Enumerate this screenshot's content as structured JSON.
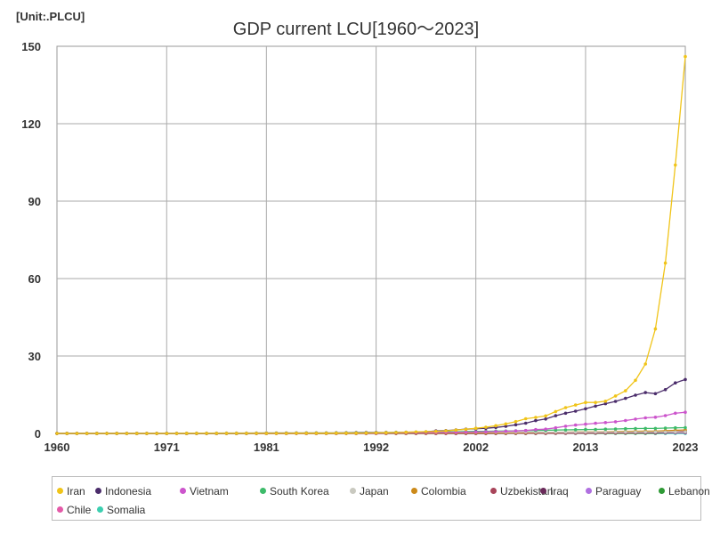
{
  "chart_data": {
    "type": "line",
    "title": "GDP current LCU[1960～2023]",
    "unit_label": "[Unit:.PLCU]",
    "xlabel": "",
    "ylabel": "",
    "x_ticks": [
      1960,
      1971,
      1981,
      1992,
      2002,
      2013,
      2023
    ],
    "xlim": [
      1960,
      2023
    ],
    "y_ticks": [
      0,
      30,
      60,
      90,
      120,
      150
    ],
    "ylim": [
      0,
      150
    ],
    "grid": true,
    "legend_position": "bottom",
    "series": [
      {
        "name": "Iran",
        "color": "#f0c419",
        "x_start": 1960,
        "values": [
          0.01,
          0.01,
          0.01,
          0.01,
          0.01,
          0.01,
          0.01,
          0.01,
          0.01,
          0.01,
          0.01,
          0.01,
          0.01,
          0.02,
          0.02,
          0.02,
          0.03,
          0.03,
          0.03,
          0.03,
          0.04,
          0.04,
          0.05,
          0.05,
          0.06,
          0.06,
          0.07,
          0.08,
          0.09,
          0.1,
          0.12,
          0.15,
          0.2,
          0.26,
          0.33,
          0.44,
          0.59,
          0.7,
          0.8,
          1.0,
          1.3,
          1.6,
          2.0,
          2.4,
          3.0,
          3.7,
          4.6,
          5.7,
          6.2,
          6.8,
          8.5,
          10.0,
          11.0,
          12.0,
          12.0,
          12.5,
          14.5,
          16.5,
          20.6,
          26.9,
          40.5,
          66.0,
          104.0,
          146.0
        ]
      },
      {
        "name": "Indonesia",
        "color": "#4b2d6b",
        "x_start": 1960,
        "values": [
          0,
          0,
          0,
          0,
          0,
          0,
          0,
          0,
          0,
          0,
          0,
          0,
          0,
          0,
          0,
          0,
          0,
          0,
          0,
          0,
          0.05,
          0.06,
          0.07,
          0.08,
          0.09,
          0.1,
          0.1,
          0.12,
          0.14,
          0.16,
          0.2,
          0.23,
          0.26,
          0.3,
          0.35,
          0.45,
          0.53,
          0.62,
          0.95,
          1.1,
          1.39,
          1.65,
          1.82,
          2.01,
          2.3,
          2.77,
          3.34,
          3.95,
          4.95,
          5.6,
          6.86,
          7.83,
          8.62,
          9.55,
          10.57,
          11.53,
          12.4,
          13.59,
          14.84,
          15.83,
          15.43,
          16.98,
          19.59,
          20.89
        ]
      },
      {
        "name": "Vietnam",
        "color": "#cc55cc",
        "x_start": 1960,
        "values": [
          0,
          0,
          0,
          0,
          0,
          0,
          0,
          0,
          0,
          0,
          0,
          0,
          0,
          0,
          0,
          0,
          0,
          0,
          0,
          0,
          0,
          0,
          0,
          0,
          0,
          0,
          0.02,
          0.03,
          0.05,
          0.06,
          0.07,
          0.09,
          0.12,
          0.14,
          0.18,
          0.22,
          0.27,
          0.31,
          0.36,
          0.4,
          0.44,
          0.48,
          0.54,
          0.61,
          0.72,
          0.84,
          0.97,
          1.14,
          1.48,
          1.66,
          2.16,
          2.78,
          3.25,
          3.58,
          3.94,
          4.19,
          4.5,
          5.01,
          5.54,
          6.04,
          6.29,
          6.89,
          7.83,
          8.22
        ]
      },
      {
        "name": "South Korea",
        "color": "#3dbb6a",
        "x_start": 1960,
        "values": [
          0,
          0,
          0,
          0,
          0,
          0,
          0,
          0,
          0,
          0,
          0,
          0,
          0,
          0,
          0,
          0,
          0,
          0,
          0,
          0,
          0.04,
          0.05,
          0.06,
          0.07,
          0.08,
          0.09,
          0.1,
          0.11,
          0.13,
          0.15,
          0.2,
          0.24,
          0.28,
          0.32,
          0.37,
          0.43,
          0.48,
          0.53,
          0.54,
          0.59,
          0.65,
          0.71,
          0.78,
          0.82,
          0.88,
          0.94,
          1.0,
          1.09,
          1.15,
          1.21,
          1.32,
          1.39,
          1.44,
          1.5,
          1.56,
          1.66,
          1.74,
          1.84,
          1.9,
          1.92,
          1.94,
          2.08,
          2.16,
          2.24
        ]
      },
      {
        "name": "Japan",
        "color": "#c9c9c0",
        "x_start": 1960,
        "values": [
          0.02,
          0.02,
          0.02,
          0.03,
          0.03,
          0.04,
          0.04,
          0.05,
          0.06,
          0.07,
          0.08,
          0.09,
          0.1,
          0.12,
          0.14,
          0.15,
          0.17,
          0.19,
          0.21,
          0.22,
          0.24,
          0.26,
          0.27,
          0.29,
          0.3,
          0.33,
          0.34,
          0.36,
          0.38,
          0.41,
          0.45,
          0.47,
          0.48,
          0.49,
          0.5,
          0.51,
          0.52,
          0.53,
          0.53,
          0.52,
          0.53,
          0.52,
          0.52,
          0.52,
          0.52,
          0.53,
          0.53,
          0.54,
          0.53,
          0.5,
          0.51,
          0.5,
          0.5,
          0.51,
          0.52,
          0.54,
          0.54,
          0.55,
          0.55,
          0.56,
          0.54,
          0.55,
          0.56,
          0.59
        ]
      },
      {
        "name": "Colombia",
        "color": "#cc8a1a",
        "x_start": 1960,
        "values": [
          0,
          0,
          0,
          0,
          0,
          0,
          0,
          0,
          0,
          0,
          0,
          0,
          0,
          0,
          0,
          0,
          0,
          0,
          0,
          0,
          0,
          0,
          0,
          0,
          0,
          0,
          0,
          0,
          0,
          0,
          0.02,
          0.03,
          0.03,
          0.04,
          0.06,
          0.08,
          0.1,
          0.12,
          0.14,
          0.15,
          0.17,
          0.19,
          0.2,
          0.22,
          0.25,
          0.28,
          0.31,
          0.35,
          0.4,
          0.44,
          0.47,
          0.53,
          0.57,
          0.61,
          0.66,
          0.7,
          0.76,
          0.8,
          0.85,
          0.91,
          0.9,
          1.06,
          1.21,
          1.37
        ]
      },
      {
        "name": "Uzbekistan",
        "color": "#a8445a",
        "x_start": 1960,
        "values": [
          0,
          0,
          0,
          0,
          0,
          0,
          0,
          0,
          0,
          0,
          0,
          0,
          0,
          0,
          0,
          0,
          0,
          0,
          0,
          0,
          0,
          0,
          0,
          0,
          0,
          0,
          0,
          0,
          0,
          0,
          0,
          0,
          0,
          0,
          0,
          0,
          0,
          0,
          0,
          0,
          0.01,
          0.01,
          0.01,
          0.01,
          0.01,
          0.02,
          0.02,
          0.03,
          0.04,
          0.05,
          0.06,
          0.08,
          0.1,
          0.12,
          0.14,
          0.17,
          0.2,
          0.25,
          0.31,
          0.39,
          0.45,
          0.55,
          0.65,
          0.9
        ]
      },
      {
        "name": "Iraq",
        "color": "#6a2a5a",
        "x_start": 1960,
        "values": [
          0,
          0,
          0,
          0,
          0,
          0,
          0,
          0,
          0,
          0,
          0,
          0,
          0,
          0,
          0,
          0,
          0,
          0,
          0,
          0,
          0,
          0,
          0,
          0,
          0,
          0,
          0,
          0,
          0,
          0,
          0,
          0,
          0,
          0,
          0,
          0,
          0,
          0,
          0,
          0,
          0,
          0,
          0,
          0,
          0.05,
          0.07,
          0.1,
          0.11,
          0.16,
          0.13,
          0.16,
          0.21,
          0.25,
          0.27,
          0.27,
          0.21,
          0.2,
          0.23,
          0.27,
          0.28,
          0.22,
          0.3,
          0.38,
          0.37
        ]
      },
      {
        "name": "Paraguay",
        "color": "#b070e0",
        "x_start": 1960,
        "values": [
          0,
          0,
          0,
          0,
          0,
          0,
          0,
          0,
          0,
          0,
          0,
          0,
          0,
          0,
          0,
          0,
          0,
          0,
          0,
          0,
          0,
          0,
          0,
          0,
          0,
          0,
          0,
          0,
          0,
          0,
          0.01,
          0.01,
          0.02,
          0.02,
          0.03,
          0.03,
          0.04,
          0.04,
          0.05,
          0.05,
          0.05,
          0.06,
          0.06,
          0.07,
          0.08,
          0.09,
          0.1,
          0.12,
          0.14,
          0.14,
          0.16,
          0.17,
          0.18,
          0.2,
          0.21,
          0.22,
          0.23,
          0.24,
          0.26,
          0.27,
          0.26,
          0.28,
          0.3,
          0.31
        ]
      },
      {
        "name": "Lebanon",
        "color": "#2e9a35",
        "x_start": 1960,
        "values": [
          0,
          0,
          0,
          0,
          0,
          0,
          0,
          0,
          0,
          0,
          0,
          0,
          0,
          0,
          0,
          0,
          0,
          0,
          0,
          0,
          0,
          0,
          0,
          0,
          0,
          0,
          0,
          0,
          0,
          0,
          0,
          0,
          0,
          0,
          0,
          0,
          0,
          0,
          0,
          0,
          0,
          0,
          0,
          0,
          0,
          0,
          0.02,
          0.03,
          0.04,
          0.05,
          0.06,
          0.06,
          0.07,
          0.07,
          0.07,
          0.08,
          0.08,
          0.08,
          0.08,
          0.08,
          0.09,
          0.2,
          0.5,
          0.9
        ]
      },
      {
        "name": "Chile",
        "color": "#e45aa8",
        "x_start": 1960,
        "values": [
          0,
          0,
          0,
          0,
          0,
          0,
          0,
          0,
          0,
          0,
          0,
          0,
          0,
          0,
          0,
          0,
          0,
          0,
          0,
          0,
          0,
          0,
          0,
          0,
          0,
          0,
          0,
          0,
          0,
          0,
          0.01,
          0.01,
          0.01,
          0.02,
          0.02,
          0.02,
          0.03,
          0.03,
          0.03,
          0.04,
          0.04,
          0.05,
          0.05,
          0.05,
          0.06,
          0.07,
          0.08,
          0.09,
          0.09,
          0.1,
          0.11,
          0.12,
          0.13,
          0.14,
          0.15,
          0.16,
          0.17,
          0.18,
          0.19,
          0.2,
          0.2,
          0.24,
          0.26,
          0.28
        ]
      },
      {
        "name": "Somalia",
        "color": "#3ccfb0",
        "x_start": 1960,
        "values": [
          0,
          0,
          0,
          0,
          0,
          0,
          0,
          0,
          0,
          0,
          0,
          0,
          0,
          0,
          0,
          0,
          0,
          0,
          0,
          0,
          0,
          0,
          0,
          0,
          0,
          0,
          0,
          0,
          0,
          0,
          0,
          0,
          0,
          0,
          0,
          0,
          0,
          0,
          0,
          0,
          0,
          0,
          0,
          0,
          0,
          0,
          0,
          0,
          0,
          0,
          0,
          0,
          0,
          0,
          0,
          0,
          0,
          0,
          0,
          0,
          0,
          0,
          0,
          0
        ]
      }
    ]
  }
}
